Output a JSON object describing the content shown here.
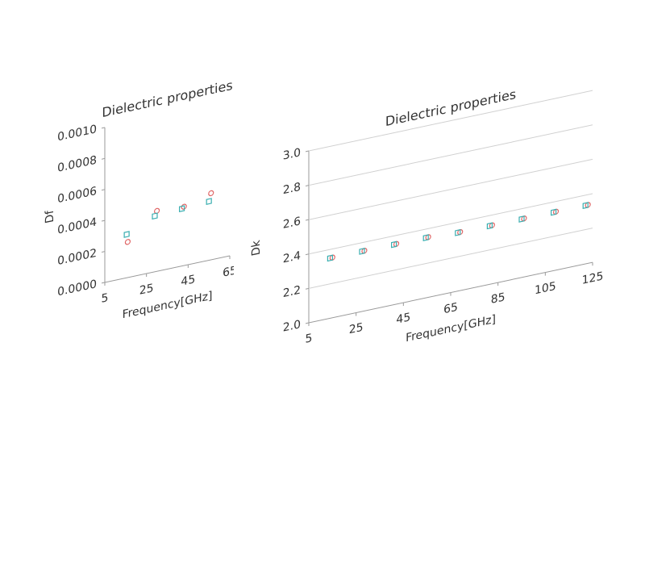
{
  "chart_data": [
    {
      "type": "scatter",
      "title": "Dielectric properties",
      "xlabel": "Frequency[GHz]",
      "ylabel": "Df",
      "xlim": [
        5,
        65
      ],
      "xticks": [
        5,
        25,
        45,
        65
      ],
      "ylim": [
        0,
        0.001
      ],
      "yticks": [
        {
          "value": 0,
          "label": "0.0000"
        },
        {
          "value": 0.0002,
          "label": "0.0002"
        },
        {
          "value": 0.0004,
          "label": "0.0004"
        },
        {
          "value": 0.0006,
          "label": "0.0006"
        },
        {
          "value": 0.0008,
          "label": "0.0008"
        },
        {
          "value": 0.001,
          "label": "0.0010"
        }
      ],
      "grid": false,
      "series": [
        {
          "color": "#e06666",
          "marker": "circle",
          "x": [
            16,
            30,
            43,
            56
          ],
          "values": [
            0.00023,
            0.00039,
            0.00038,
            0.00043
          ]
        },
        {
          "color": "#3aaeb0",
          "marker": "square",
          "x": [
            15.5,
            29,
            42,
            55
          ],
          "values": [
            0.00028,
            0.00036,
            0.00037,
            0.00038
          ]
        }
      ]
    },
    {
      "type": "scatter",
      "title": "Dielectric properties",
      "xlabel": "Frequency[GHz]",
      "ylabel": "Dk",
      "xlim": [
        5,
        125
      ],
      "xticks": [
        5,
        25,
        45,
        65,
        85,
        105,
        125
      ],
      "ylim": [
        2,
        3
      ],
      "yticks": [
        {
          "value": 2,
          "label": "2.0"
        },
        2.2,
        2.4,
        2.6,
        2.8,
        {
          "value": 3,
          "label": "3.0"
        }
      ],
      "grid": true,
      "series": [
        {
          "color": "#e06666",
          "marker": "circle",
          "x": [
            15,
            28.5,
            42,
            55.5,
            69,
            82.5,
            96,
            109.5,
            123
          ],
          "values": [
            2.35,
            2.35,
            2.35,
            2.35,
            2.34,
            2.34,
            2.34,
            2.34,
            2.34
          ]
        },
        {
          "color": "#3aaeb0",
          "marker": "square",
          "x": [
            14,
            27.5,
            41,
            54.5,
            68,
            81.5,
            95,
            108.5,
            122
          ],
          "values": [
            2.35,
            2.35,
            2.35,
            2.35,
            2.34,
            2.34,
            2.34,
            2.34,
            2.34
          ]
        }
      ]
    }
  ]
}
